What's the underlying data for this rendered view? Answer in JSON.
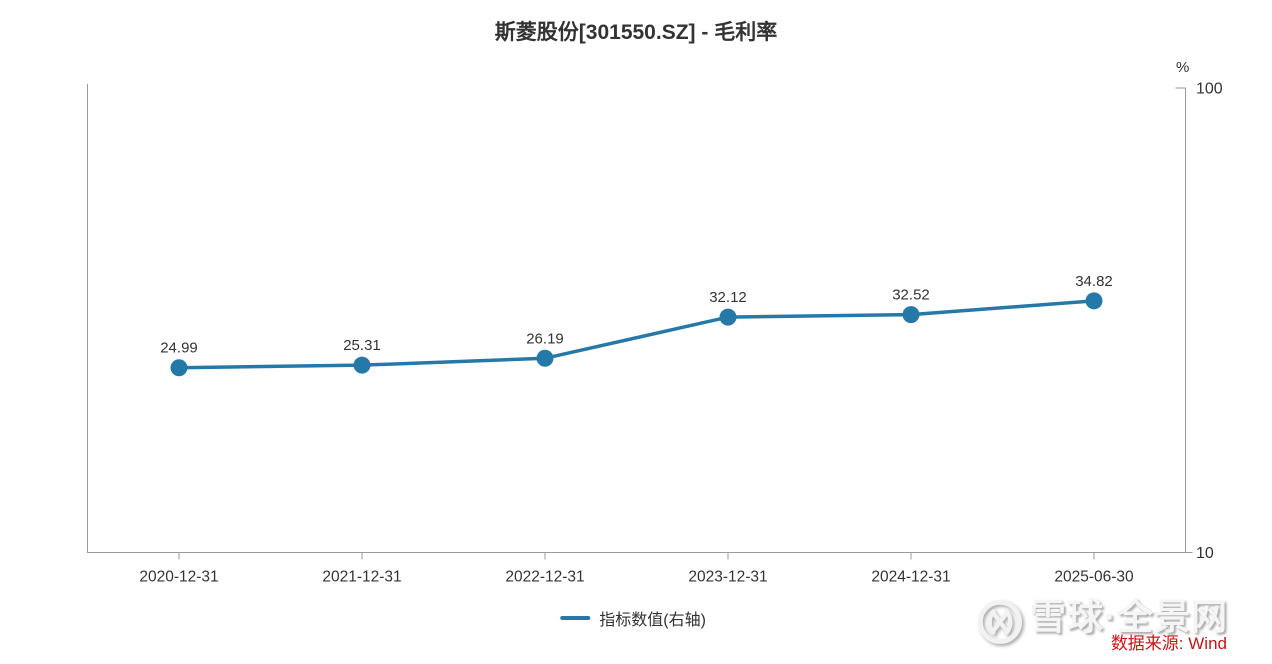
{
  "title": "斯菱股份[301550.SZ] - 毛利率",
  "chart_data": {
    "type": "line",
    "categories": [
      "2020-12-31",
      "2021-12-31",
      "2022-12-31",
      "2023-12-31",
      "2024-12-31",
      "2025-06-30"
    ],
    "series": [
      {
        "name": "指标数值(右轴)",
        "values": [
          24.99,
          25.31,
          26.19,
          32.12,
          32.52,
          34.82
        ]
      }
    ],
    "data_labels": [
      "24.99",
      "25.31",
      "26.19",
      "32.12",
      "32.52",
      "34.82"
    ],
    "y_axis": {
      "side": "right",
      "scale": "log",
      "min": 10,
      "max": 100,
      "ticks": [
        100,
        10
      ],
      "unit": "%"
    },
    "line_color": "#2579a9",
    "axis_color": "#999999",
    "label_color": "#333333",
    "grid": false,
    "legend_position": "bottom"
  },
  "legend": {
    "label": "指标数值(右轴)"
  },
  "footer": {
    "watermark": "雪球·全景网",
    "source": "数据来源: Wind",
    "source_color": "#cc1414"
  }
}
